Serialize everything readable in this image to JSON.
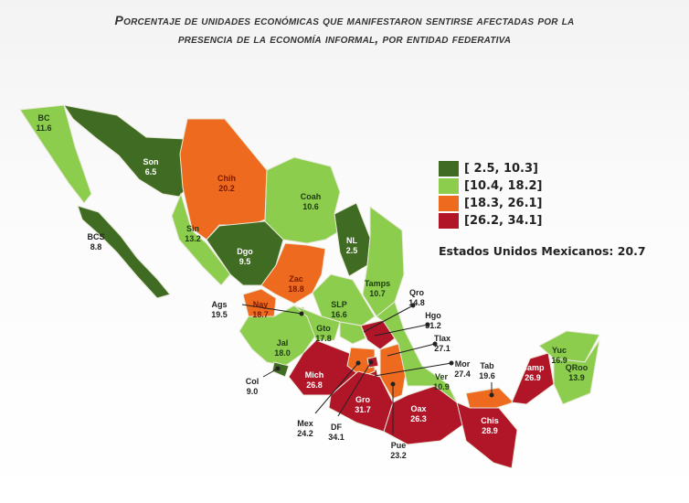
{
  "title": {
    "line1": "Porcentaje de unidades económicas que manifestaron sentirse afectadas por la",
    "line2": "presencia de la economía informal, por entidad federativa"
  },
  "legend": [
    {
      "label": "[  2.5, 10.3]",
      "min": 2.5,
      "max": 10.3,
      "color": "#3f6b22"
    },
    {
      "label": "[10.4, 18.2]",
      "min": 10.4,
      "max": 18.2,
      "color": "#8ccd4e"
    },
    {
      "label": "[18.3, 26.1]",
      "min": 18.3,
      "max": 26.1,
      "color": "#ee6a1e"
    },
    {
      "label": "[26.2, 34.1]",
      "min": 26.2,
      "max": 34.1,
      "color": "#b01628"
    }
  ],
  "national": "Estados Unidos Mexicanos: 20.7",
  "states": [
    {
      "abbr": "BC",
      "value": "11.6"
    },
    {
      "abbr": "BCS",
      "value": "8.8"
    },
    {
      "abbr": "Son",
      "value": "6.5"
    },
    {
      "abbr": "Chih",
      "value": "20.2"
    },
    {
      "abbr": "Coah",
      "value": "10.6"
    },
    {
      "abbr": "Sin",
      "value": "13.2"
    },
    {
      "abbr": "Dgo",
      "value": "9.5"
    },
    {
      "abbr": "NL",
      "value": "2.5"
    },
    {
      "abbr": "Tamps",
      "value": "10.7"
    },
    {
      "abbr": "Zac",
      "value": "18.8"
    },
    {
      "abbr": "SLP",
      "value": "16.6"
    },
    {
      "abbr": "Ags",
      "value": "19.5"
    },
    {
      "abbr": "Nay",
      "value": "18.7"
    },
    {
      "abbr": "Jal",
      "value": "18.0"
    },
    {
      "abbr": "Gto",
      "value": "17.8"
    },
    {
      "abbr": "Qro",
      "value": "14.8"
    },
    {
      "abbr": "Hgo",
      "value": "31.2"
    },
    {
      "abbr": "Tlax",
      "value": "27.1"
    },
    {
      "abbr": "Mor",
      "value": "27.4"
    },
    {
      "abbr": "Col",
      "value": "9.0"
    },
    {
      "abbr": "Mich",
      "value": "26.8"
    },
    {
      "abbr": "Mex",
      "value": "24.2"
    },
    {
      "abbr": "DF",
      "value": "34.1"
    },
    {
      "abbr": "Gro",
      "value": "31.7"
    },
    {
      "abbr": "Pue",
      "value": "23.2"
    },
    {
      "abbr": "Oax",
      "value": "26.3"
    },
    {
      "abbr": "Ver",
      "value": "10.9"
    },
    {
      "abbr": "Tab",
      "value": "19.6"
    },
    {
      "abbr": "Chis",
      "value": "28.9"
    },
    {
      "abbr": "Camp",
      "value": "26.9"
    },
    {
      "abbr": "Yuc",
      "value": "16.9"
    },
    {
      "abbr": "QRoo",
      "value": "13.9"
    }
  ]
}
